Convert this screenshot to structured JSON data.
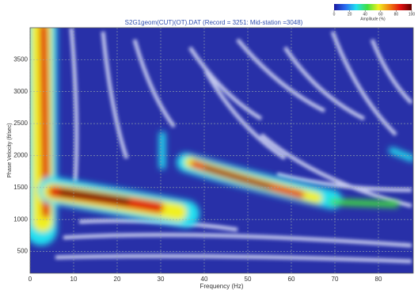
{
  "chart_data": {
    "type": "heatmap",
    "title": "S2G1geom(CUT)(OT).DAT  (Record = 3251: Mid-station =3048)",
    "x_label": "Frequency (Hz)",
    "y_label": "Phase Velocity (ft/sec)",
    "xlim": [
      0,
      88
    ],
    "xticks": [
      0,
      10,
      20,
      30,
      40,
      50,
      60,
      70,
      80
    ],
    "ylim": [
      160,
      4000
    ],
    "yticks": [
      500,
      1000,
      1500,
      2000,
      2500,
      3000,
      3500
    ],
    "grid": true,
    "colorbar": {
      "label": "Amplitude (%)",
      "lim": [
        0,
        100
      ],
      "ticks": [
        0,
        20,
        40,
        60,
        80,
        100
      ],
      "colors": [
        "#1a1aa0",
        "#2a6af0",
        "#22e0f0",
        "#40e040",
        "#f0f020",
        "#f08010",
        "#e01010",
        "#600000"
      ]
    }
  }
}
